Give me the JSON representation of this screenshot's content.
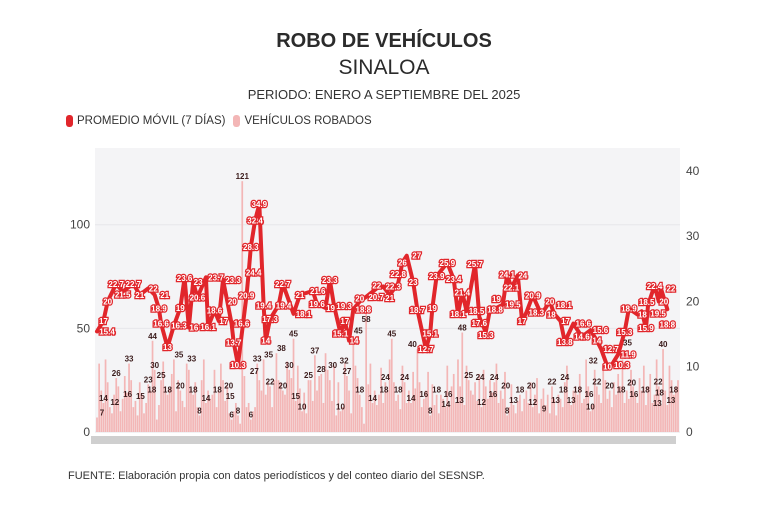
{
  "title": "ROBO DE VEHÍCULOS",
  "subtitle": "SINALOA",
  "period": "PERIODO: ENERO A SEPTIEMBRE DEL 2025",
  "footer": "FUENTE: Elaboración propia con datos periodísticos y del conteo diario del SESNSP.",
  "colors": {
    "moving_average": "#e1262b",
    "bars": "#f3b6b6",
    "plot_bg": "#f4f4f6"
  },
  "chart_data": {
    "type": "bar+line",
    "legend": [
      {
        "label": "PROMEDIO MÓVIL (7 DÍAS)",
        "color": "#e1262b"
      },
      {
        "label": "VEHÍCULOS ROBADOS",
        "color": "#f3b6b6"
      }
    ],
    "legend_position": "top-left",
    "x_unit": "day (Jan 1 – Sep 30, 2025)",
    "left_axis": {
      "ticks": [
        0,
        50,
        100
      ],
      "range": [
        0,
        137
      ]
    },
    "right_axis": {
      "ticks": [
        0,
        10,
        20,
        30,
        40
      ],
      "range": [
        0,
        43.5
      ]
    },
    "grid": true,
    "bars": {
      "name": "VEHÍCULOS ROBADOS",
      "values": [
        7,
        33,
        20,
        14,
        35,
        24,
        12,
        9,
        18,
        26,
        22,
        10,
        16,
        27,
        19,
        33,
        25,
        12,
        15,
        8,
        24,
        18,
        9,
        14,
        23,
        20,
        44,
        30,
        6,
        13,
        25,
        34,
        22,
        18,
        21,
        28,
        35,
        10,
        25,
        20,
        15,
        12,
        33,
        30,
        21,
        18,
        24,
        12,
        8,
        25,
        35,
        14,
        20,
        16,
        18,
        30,
        12,
        20,
        33,
        25,
        15,
        22,
        9,
        6,
        10,
        14,
        8,
        4,
        121,
        27,
        12,
        14,
        6,
        10,
        12,
        33,
        25,
        20,
        35,
        18,
        24,
        22,
        12,
        25,
        38,
        25,
        24,
        20,
        18,
        34,
        30,
        26,
        45,
        15,
        32,
        21,
        10,
        19,
        9,
        25,
        25,
        15,
        37,
        20,
        27,
        28,
        14,
        38,
        30,
        25,
        15,
        32,
        8,
        24,
        10,
        12,
        33,
        27,
        20,
        9,
        45,
        32,
        26,
        18,
        12,
        4,
        58,
        23,
        33,
        14,
        20,
        13,
        18,
        31,
        14,
        24,
        20,
        35,
        45,
        24,
        15,
        18,
        11,
        32,
        24,
        14,
        20,
        14,
        29,
        21,
        40,
        24,
        12,
        16,
        20,
        29,
        8,
        23,
        13,
        18,
        9,
        18,
        16,
        12,
        32,
        13,
        22,
        28,
        14,
        35,
        22,
        48,
        13,
        32,
        25,
        20,
        18,
        24,
        15,
        28,
        12,
        30,
        22,
        16,
        25,
        19,
        24,
        33,
        14,
        20,
        16,
        29,
        8,
        12,
        23,
        13,
        9,
        15,
        18,
        10,
        16,
        20,
        14,
        24,
        12,
        18,
        26,
        9,
        16,
        21,
        13,
        18,
        9,
        22,
        16,
        8,
        18,
        16,
        12,
        24,
        32,
        14,
        13,
        20,
        22,
        18,
        28,
        14,
        16,
        35,
        22,
        10,
        13,
        30,
        22,
        18,
        14,
        32,
        25,
        16,
        20,
        12,
        24,
        18,
        28,
        22,
        35,
        14,
        20,
        16,
        30,
        22,
        18,
        14,
        26,
        20,
        32,
        13,
        22,
        28,
        14,
        18,
        35,
        22,
        13,
        40,
        20,
        13,
        32,
        25,
        18,
        22,
        25
      ]
    },
    "moving_average": {
      "name": "PROMEDIO MÓVIL (7 DÍAS)",
      "points": [
        [
          1,
          15.4
        ],
        [
          4,
          17
        ],
        [
          6,
          20
        ],
        [
          10,
          22.7
        ],
        [
          13,
          21.5
        ],
        [
          18,
          22.7
        ],
        [
          21,
          21
        ],
        [
          25,
          22
        ],
        [
          28,
          21
        ],
        [
          30,
          18.9
        ],
        [
          31,
          16.6
        ],
        [
          34,
          13
        ],
        [
          37,
          16.3
        ],
        [
          40,
          19
        ],
        [
          42,
          23.6
        ],
        [
          44,
          16
        ],
        [
          46,
          23
        ],
        [
          48,
          20.6
        ],
        [
          52,
          23.7
        ],
        [
          53,
          16.1
        ],
        [
          56,
          18.6
        ],
        [
          58,
          17
        ],
        [
          60,
          23.3
        ],
        [
          62,
          20
        ],
        [
          64,
          16.6
        ],
        [
          65,
          13.7
        ],
        [
          67,
          10.3
        ],
        [
          71,
          20.9
        ],
        [
          72,
          24.4
        ],
        [
          73,
          28.3
        ],
        [
          75,
          32.4
        ],
        [
          77,
          34.9
        ],
        [
          79,
          19.4
        ],
        [
          80,
          14
        ],
        [
          82,
          17.3
        ],
        [
          86,
          19.4
        ],
        [
          88,
          22.7
        ],
        [
          93,
          18.1
        ],
        [
          96,
          21
        ],
        [
          102,
          21.6
        ],
        [
          104,
          19.6
        ],
        [
          108,
          19
        ],
        [
          110,
          23.3
        ],
        [
          112,
          19.3
        ],
        [
          115,
          15.1
        ],
        [
          117,
          17
        ],
        [
          119,
          14
        ],
        [
          121,
          18.8
        ],
        [
          124,
          20
        ],
        [
          127,
          20.7
        ],
        [
          132,
          22
        ],
        [
          135,
          22.3
        ],
        [
          138,
          21
        ],
        [
          142,
          22.8
        ],
        [
          144,
          26
        ],
        [
          146,
          27
        ],
        [
          149,
          23
        ],
        [
          151,
          18.7
        ],
        [
          155,
          12.7
        ],
        [
          157,
          15.1
        ],
        [
          158,
          19
        ],
        [
          160,
          23.9
        ],
        [
          165,
          25.9
        ],
        [
          168,
          23.4
        ],
        [
          170,
          18.1
        ],
        [
          172,
          21.4
        ],
        [
          174,
          18.5
        ],
        [
          178,
          25.7
        ],
        [
          180,
          17.6
        ],
        [
          183,
          15.3
        ],
        [
          185,
          18.8
        ],
        [
          188,
          19
        ],
        [
          191,
          19.5
        ],
        [
          193,
          24.1
        ],
        [
          195,
          22.1
        ],
        [
          198,
          24
        ],
        [
          200,
          17
        ],
        [
          202,
          18.3
        ],
        [
          205,
          20.9
        ],
        [
          209,
          18
        ],
        [
          213,
          20
        ],
        [
          215,
          18.1
        ],
        [
          218,
          17
        ],
        [
          220,
          13.8
        ],
        [
          224,
          16.6
        ],
        [
          228,
          14.6
        ],
        [
          232,
          15.6
        ],
        [
          235,
          14
        ],
        [
          237,
          12.7
        ],
        [
          240,
          10
        ],
        [
          242,
          10.3
        ],
        [
          245,
          11.9
        ],
        [
          248,
          15.3
        ],
        [
          250,
          18.9
        ],
        [
          254,
          18
        ],
        [
          256,
          18.5
        ],
        [
          258,
          15.9
        ],
        [
          259,
          19.5
        ],
        [
          262,
          22.4
        ],
        [
          264,
          20
        ],
        [
          265,
          22
        ],
        [
          268,
          18.8
        ]
      ]
    }
  }
}
